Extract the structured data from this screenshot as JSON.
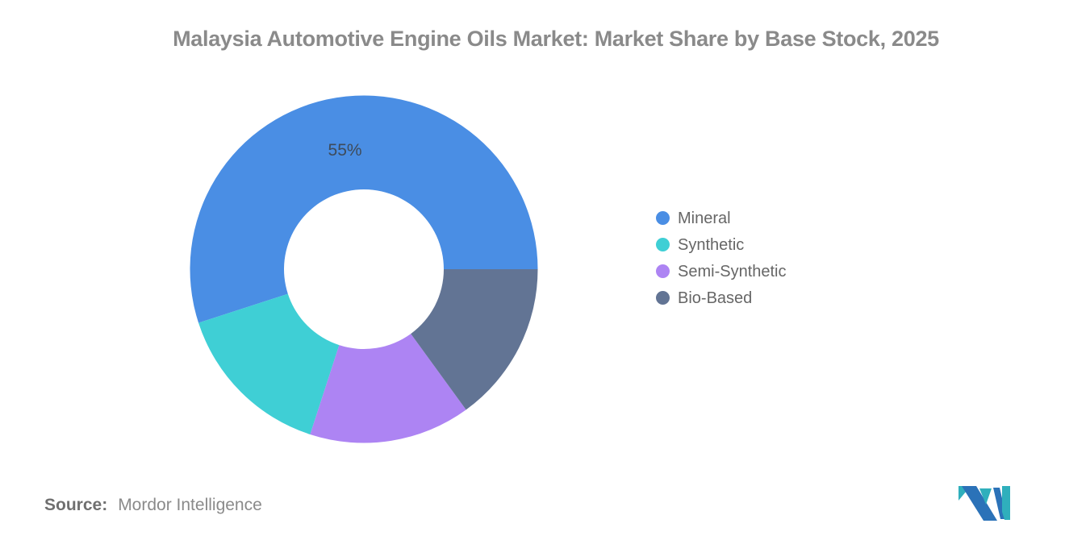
{
  "title": "Malaysia Automotive Engine Oils Market: Market Share by Base Stock, 2025",
  "source": {
    "label": "Source:",
    "name": "Mordor Intelligence"
  },
  "logo": {
    "semantic": "mordor-intelligence-logo",
    "navy": "#2B72B8",
    "teal": "#2FAFBC"
  },
  "chart_data": {
    "type": "pie",
    "subtype": "donut",
    "title": "Malaysia Automotive Engine Oils Market: Market Share by Base Stock, 2025",
    "legend_position": "right",
    "start_at_deg_math": 0,
    "direction": "counterclockwise",
    "inner_radius_ratio": 0.46,
    "background": "#ffffff",
    "series": [
      {
        "name": "Mineral",
        "value": 55,
        "color": "#4A8EE4",
        "data_label": "55%"
      },
      {
        "name": "Synthetic",
        "value": 15,
        "color": "#3FCFD5",
        "data_label": ""
      },
      {
        "name": "Semi-Synthetic",
        "value": 15,
        "color": "#AD84F3",
        "data_label": ""
      },
      {
        "name": "Bio-Based",
        "value": 15,
        "color": "#627494",
        "data_label": ""
      }
    ]
  }
}
